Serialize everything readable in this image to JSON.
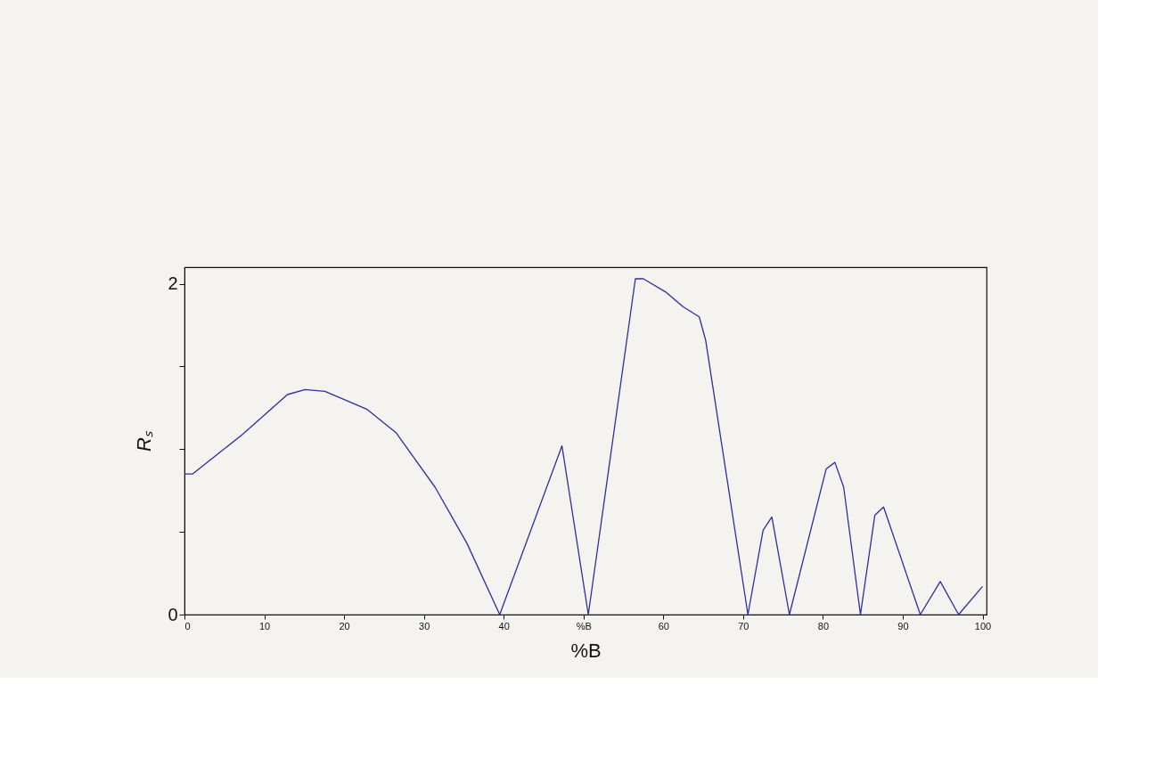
{
  "chart_data": {
    "type": "line",
    "xlabel": "%B",
    "ylabel": "Rₛ",
    "x": [
      0,
      1,
      7.3,
      12.9,
      15.1,
      17.6,
      22.9,
      26.5,
      31.4,
      35.4,
      39.5,
      47.3,
      50.6,
      56.5,
      57.5,
      60.3,
      62.5,
      64.5,
      65.3,
      70.6,
      72.5,
      73.6,
      75.8,
      80.4,
      81.5,
      82.6,
      84.7,
      86.5,
      87.6,
      92.2,
      94.7,
      97,
      100
    ],
    "series": [
      {
        "color": "#2e2e9e",
        "values": [
          0.85,
          0.85,
          1.09,
          1.33,
          1.36,
          1.35,
          1.24,
          1.1,
          0.77,
          0.43,
          0,
          1.02,
          0,
          2.03,
          2.03,
          1.95,
          1.86,
          1.8,
          1.66,
          0,
          0.51,
          0.59,
          0,
          0.88,
          0.92,
          0.77,
          0,
          0.6,
          0.65,
          0,
          0.2,
          0,
          0.17
        ]
      }
    ],
    "xlim": [
      0,
      100.5
    ],
    "ylim": [
      0,
      2.1
    ],
    "xticks": [
      0,
      10,
      20,
      30,
      40,
      {
        "value": 50,
        "label": "%B"
      },
      60,
      70,
      80,
      90,
      100
    ],
    "yticks": [
      0,
      {
        "value": 0.5,
        "label": null
      },
      {
        "value": 1,
        "label": null
      },
      {
        "value": 1.5,
        "label": null
      },
      2
    ],
    "grid": false,
    "marker": "none",
    "line_style": "solid"
  }
}
